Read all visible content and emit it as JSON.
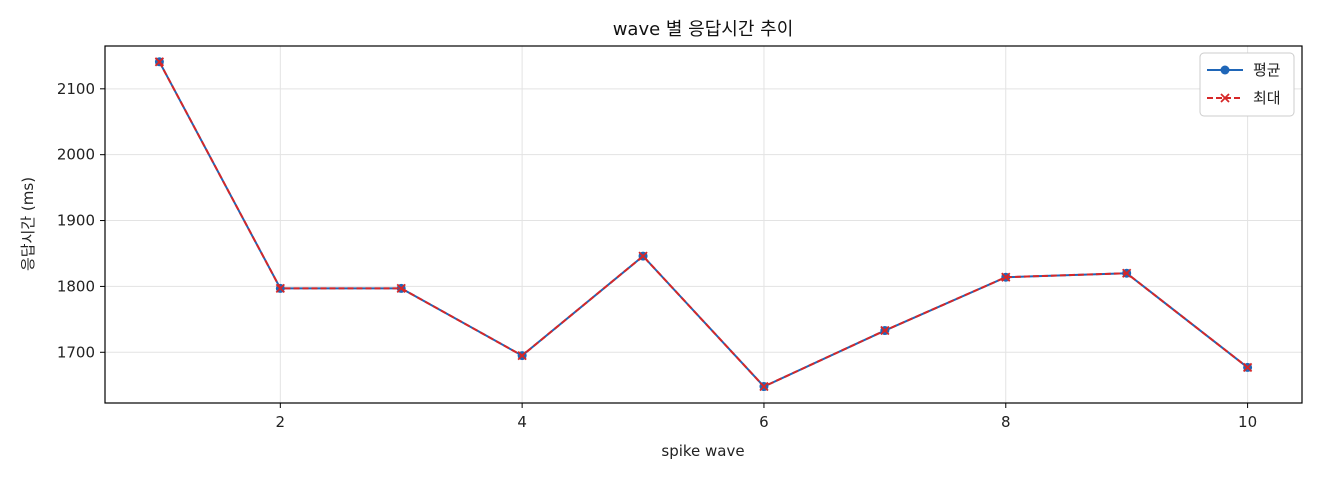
{
  "chart_data": {
    "type": "line",
    "title": "wave 별 응답시간 추이",
    "xlabel": "spike wave",
    "ylabel": "응답시간 (ms)",
    "x": [
      1,
      2,
      3,
      4,
      5,
      6,
      7,
      8,
      9,
      10
    ],
    "xlim": [
      0.55,
      10.45
    ],
    "ylim": [
      1623,
      2165
    ],
    "xticks": [
      2,
      4,
      6,
      8,
      10
    ],
    "yticks": [
      1700,
      1800,
      1900,
      2000,
      2100
    ],
    "grid": true,
    "legend_position": "top-right",
    "series": [
      {
        "name": "평균",
        "values": [
          2141,
          1797,
          1797,
          1695,
          1846,
          1648,
          1733,
          1814,
          1820,
          1677
        ],
        "color": "#1f66b8",
        "line_style": "solid",
        "marker": "circle"
      },
      {
        "name": "최대",
        "values": [
          2141,
          1797,
          1797,
          1695,
          1846,
          1648,
          1733,
          1814,
          1820,
          1677
        ],
        "color": "#d62728",
        "line_style": "dashed",
        "marker": "x"
      }
    ]
  }
}
